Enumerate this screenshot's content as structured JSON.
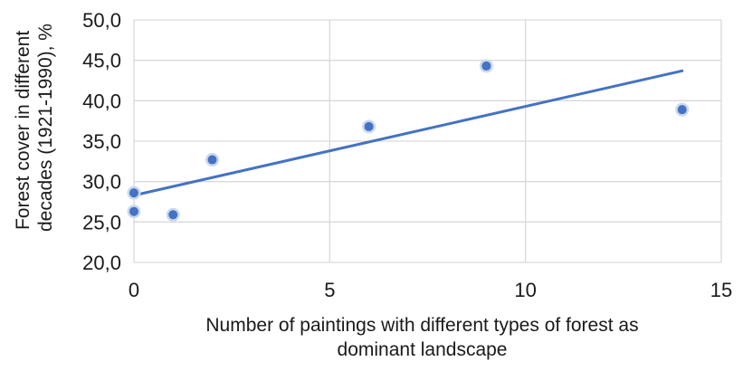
{
  "chart_data": {
    "type": "scatter",
    "title": "",
    "xlabel_lines": [
      "Number  of paintings with different types of forest as",
      "dominant landscape"
    ],
    "ylabel_lines": [
      "Forest cover in different",
      "decades (1921-1990), %"
    ],
    "xlim": [
      0,
      15
    ],
    "ylim": [
      20,
      50
    ],
    "x_ticks": [
      0,
      5,
      10,
      15
    ],
    "x_tick_labels": [
      "0",
      "5",
      "10",
      "15"
    ],
    "y_ticks": [
      20,
      25,
      30,
      35,
      40,
      45,
      50
    ],
    "y_tick_labels": [
      "20,0",
      "25,0",
      "30,0",
      "35,0",
      "40,0",
      "45,0",
      "50,0"
    ],
    "grid": true,
    "legend": "none",
    "colors": {
      "points": "#4472c4",
      "trendline": "#4472c4",
      "grid": "#d9d9d9",
      "point_halo": "#c9d8ee"
    },
    "series": [
      {
        "points": [
          {
            "x": 0,
            "y": 28.6
          },
          {
            "x": 0,
            "y": 26.3
          },
          {
            "x": 1,
            "y": 25.9
          },
          {
            "x": 2,
            "y": 32.7
          },
          {
            "x": 6,
            "y": 36.8
          },
          {
            "x": 9,
            "y": 44.3
          },
          {
            "x": 14,
            "y": 38.9
          }
        ],
        "trendline": {
          "type": "linear",
          "x": [
            0,
            14
          ],
          "y": [
            28.3,
            43.7
          ]
        }
      }
    ]
  }
}
